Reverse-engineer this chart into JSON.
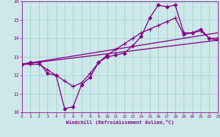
{
  "xlabel": "Windchill (Refroidissement éolien,°C)",
  "xlim": [
    0,
    23
  ],
  "ylim": [
    10,
    16
  ],
  "xticks": [
    0,
    1,
    2,
    3,
    4,
    5,
    6,
    7,
    8,
    9,
    10,
    11,
    12,
    13,
    14,
    15,
    16,
    17,
    18,
    19,
    20,
    21,
    22,
    23
  ],
  "yticks": [
    10,
    11,
    12,
    13,
    14,
    15,
    16
  ],
  "bg_color": "#cce8e8",
  "grid_color": "#99cccc",
  "line_color": "#880088",
  "series": [
    {
      "x": [
        0,
        1,
        2,
        3,
        4,
        5,
        6,
        7,
        8,
        9,
        10,
        11,
        12,
        13,
        14,
        15,
        16,
        17,
        18,
        19,
        20,
        21,
        22,
        23
      ],
      "y": [
        12.6,
        12.7,
        12.7,
        12.1,
        12.0,
        10.2,
        10.3,
        11.5,
        11.9,
        12.7,
        13.0,
        13.1,
        13.2,
        13.6,
        14.1,
        15.1,
        15.8,
        15.7,
        15.8,
        14.3,
        14.3,
        14.5,
        14.0,
        14.0
      ],
      "marker": "D",
      "markersize": 2.5,
      "linewidth": 1.0,
      "linestyle": "-"
    },
    {
      "x": [
        0,
        1,
        2,
        3,
        4,
        5,
        6,
        7,
        8,
        9,
        10,
        11,
        12,
        13,
        14,
        15,
        16,
        17,
        18,
        19,
        20,
        21,
        22,
        23
      ],
      "y": [
        12.6,
        12.6,
        12.6,
        12.3,
        12.0,
        11.7,
        11.4,
        11.6,
        12.1,
        12.7,
        13.1,
        13.4,
        13.7,
        14.0,
        14.3,
        14.5,
        14.7,
        14.9,
        15.1,
        14.2,
        14.3,
        14.4,
        14.0,
        13.9
      ],
      "marker": "+",
      "markersize": 4,
      "linewidth": 1.0,
      "linestyle": "-"
    },
    {
      "x": [
        0,
        23
      ],
      "y": [
        12.6,
        14.3
      ],
      "marker": null,
      "markersize": 0,
      "linewidth": 1.0,
      "linestyle": "-"
    },
    {
      "x": [
        0,
        23
      ],
      "y": [
        12.6,
        13.9
      ],
      "marker": null,
      "markersize": 0,
      "linewidth": 1.0,
      "linestyle": "-"
    }
  ]
}
